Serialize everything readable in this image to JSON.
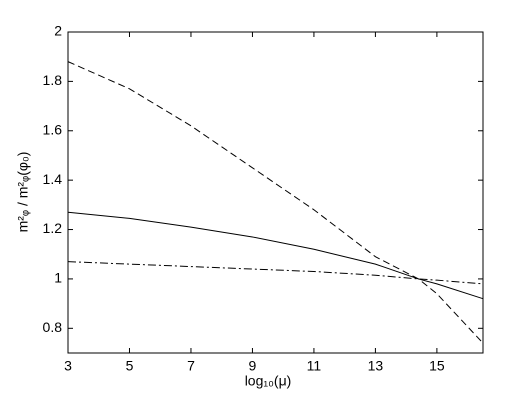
{
  "chart_data": {
    "type": "line",
    "xlabel": "log₁₀(μ)",
    "ylabel": "m²ᵩ / m²ᵩ(φ₀)",
    "x": [
      3,
      5,
      7,
      9,
      11,
      13,
      14.4,
      15,
      16.5
    ],
    "series": [
      {
        "color": "#000000",
        "dash": "solid",
        "values": [
          1.27,
          1.245,
          1.21,
          1.17,
          1.12,
          1.06,
          1.0,
          0.98,
          0.92
        ]
      },
      {
        "color": "#000000",
        "dash": "dashed",
        "values": [
          1.88,
          1.77,
          1.62,
          1.45,
          1.28,
          1.09,
          1.0,
          0.94,
          0.74
        ]
      },
      {
        "color": "#000000",
        "dash": "dashdot",
        "values": [
          1.07,
          1.06,
          1.05,
          1.04,
          1.03,
          1.015,
          1.0,
          0.995,
          0.98
        ]
      }
    ],
    "xlim": [
      3,
      16.5
    ],
    "xticks": [
      3,
      5,
      7,
      9,
      11,
      13,
      15
    ],
    "ylim": [
      0.7,
      2
    ],
    "yticks": [
      0.8,
      1,
      1.2,
      1.4,
      1.6,
      1.8,
      2
    ],
    "grid": false
  }
}
